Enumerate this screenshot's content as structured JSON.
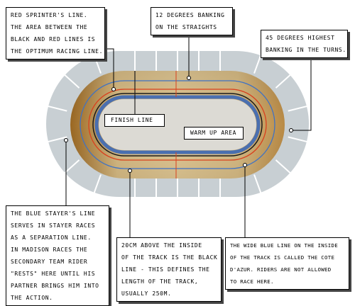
{
  "colors": {
    "stands": "#c8cfd3",
    "stands_dark": "#b4bcc1",
    "track_light": "#dcc18b",
    "track_dark": "#9a6722",
    "infield": "#dcdad4",
    "cote_dazur": "#4a6fb0",
    "black_line": "#1a1a1a",
    "red_line": "#d9401e",
    "blue_line": "#3f72c4",
    "callout": "#000000"
  },
  "labels": {
    "sprinter": [
      "RED SPRINTER'S LINE.",
      "THE AREA BETWEEN THE",
      "BLACK AND RED LINES IS",
      "THE OPTIMUM RACING LINE."
    ],
    "banking_straights": [
      "12 DEGREES BANKING",
      "ON THE STRAIGHTS"
    ],
    "banking_turns": [
      "45 DEGREES HIGHEST",
      "BANKING IN THE TURNS."
    ],
    "finish_line": [
      "FINISH LINE"
    ],
    "warm_up": [
      "WARM UP AREA"
    ],
    "stayer": [
      "THE BLUE STAYER'S LINE",
      "SERVES IN STAYER RACES",
      "AS A SEPARATION LINE.",
      "IN MADISON RACES THE",
      "SECONDARY TEAM RIDER",
      "\"RESTS\" HERE UNTIL HIS",
      "PARTNER BRINGS HIM INTO",
      "THE ACTION."
    ],
    "black_line": [
      "20CM ABOVE THE INSIDE",
      "OF THE TRACK IS THE BLACK",
      "LINE - THIS DEFINES THE",
      "LENGTH OF THE TRACK,",
      "USUALLY 250M."
    ],
    "cote_dazur": [
      "THE WIDE BLUE LINE ON THE INSIDE",
      "OF THE TRACK IS CALLED THE COTE",
      "D'AZUR. RIDERS ARE NOT ALLOWED",
      "TO RACE HERE."
    ]
  }
}
